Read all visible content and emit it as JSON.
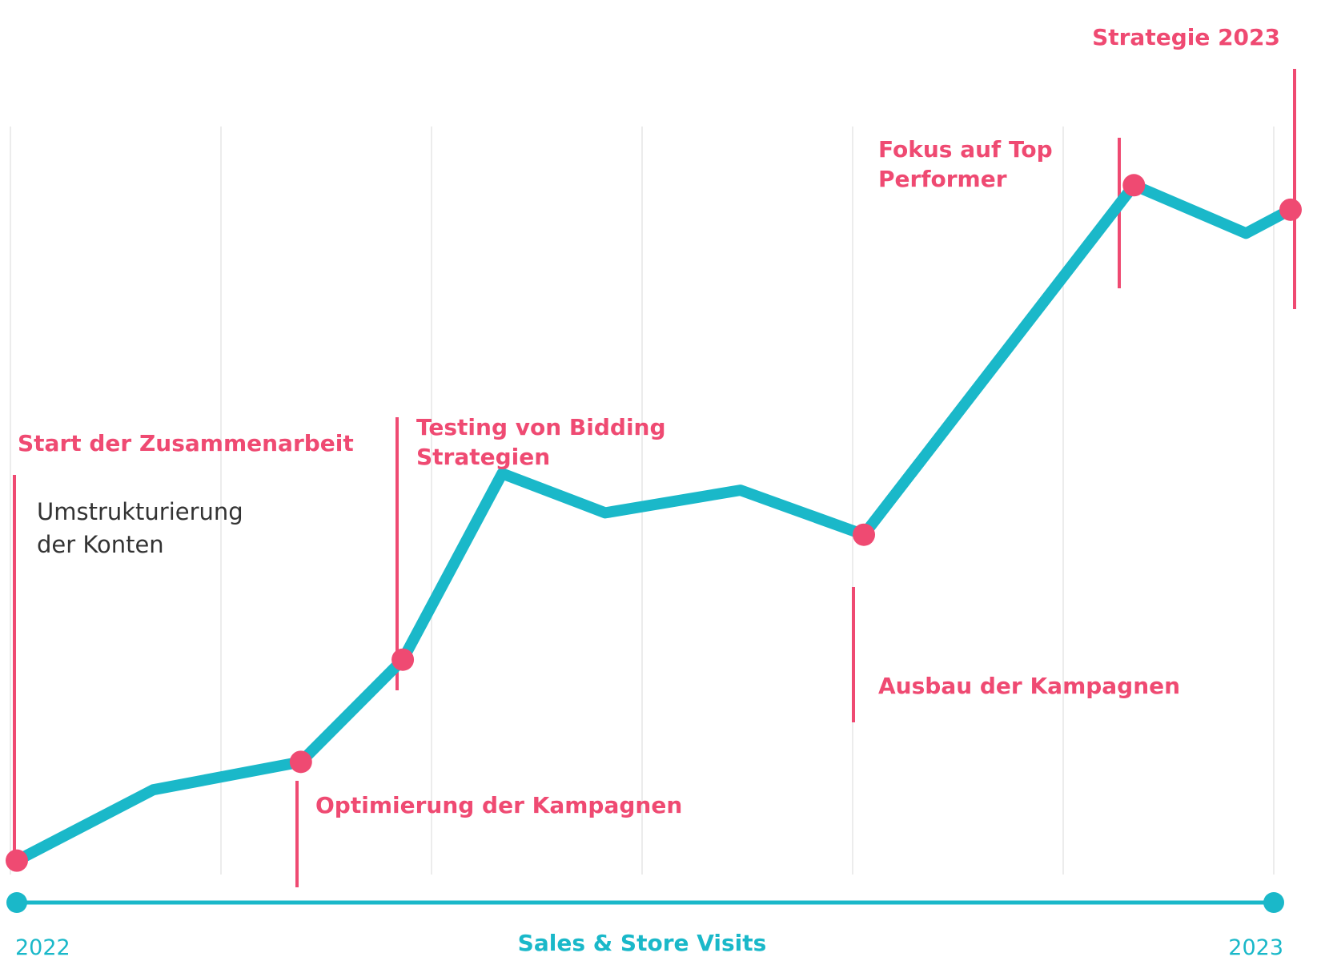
{
  "chart_data": {
    "type": "line",
    "title": "",
    "xlabel": "Sales & Store Visits",
    "ylabel": "",
    "x_start_label": "2022",
    "x_end_label": "2023",
    "xlim": [
      0,
      1
    ],
    "ylim": [
      0,
      100
    ],
    "grid": true,
    "series": [
      {
        "points": [
          {
            "x": 0.0,
            "y": 1.5
          },
          {
            "x": 0.107,
            "y": 9.6
          },
          {
            "x": 0.223,
            "y": 12.8
          },
          {
            "x": 0.303,
            "y": 24.5
          },
          {
            "x": 0.381,
            "y": 45.8
          },
          {
            "x": 0.462,
            "y": 41.3
          },
          {
            "x": 0.568,
            "y": 43.9
          },
          {
            "x": 0.665,
            "y": 38.8
          },
          {
            "x": 0.877,
            "y": 78.8
          },
          {
            "x": 0.965,
            "y": 73.3
          },
          {
            "x": 1.0,
            "y": 76.0
          }
        ]
      }
    ],
    "annotations": [
      {
        "point_index": 0,
        "label": "Start der Zusammenarbeit",
        "sublabel": [
          "Umstrukturierung",
          "der Konten"
        ],
        "side": "above"
      },
      {
        "point_index": 2,
        "label": "Optimierung der Kampagnen",
        "side": "below"
      },
      {
        "point_index": 3,
        "label": [
          "Testing von Bidding",
          "Strategien"
        ],
        "side": "above"
      },
      {
        "point_index": 7,
        "label": "Ausbau der Kampagnen",
        "side": "below"
      },
      {
        "point_index": 8,
        "label": [
          "Fokus auf Top",
          "Performer"
        ],
        "side": "above"
      },
      {
        "point_index": 10,
        "label": "Strategie 2023",
        "side": "above"
      }
    ]
  },
  "colors": {
    "line": "#1ab8c9",
    "accent": "#ef4a72",
    "grid": "#e6e6e6",
    "text": "#333333"
  }
}
